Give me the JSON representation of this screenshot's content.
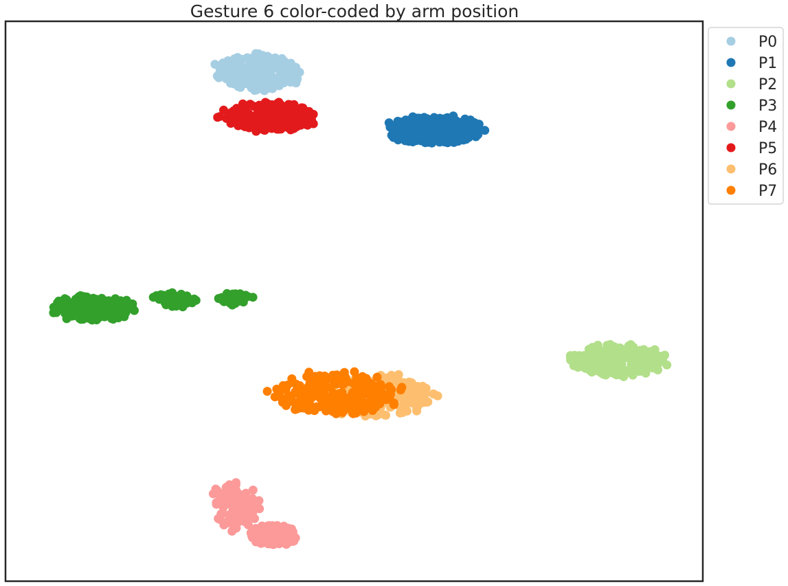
{
  "chart_data": {
    "type": "scatter",
    "title": "Gesture 6 color-coded by arm position",
    "xlabel": "",
    "ylabel": "",
    "xlim": [
      0,
      100
    ],
    "ylim": [
      0,
      100
    ],
    "grid": false,
    "legend_position": "outside-top-right",
    "series": [
      {
        "name": "P0",
        "color": "#a6cee3",
        "clusters": [
          {
            "cx": 36.2,
            "cy": 90.9,
            "rx": 6.8,
            "ry": 3.6,
            "n": 230
          }
        ]
      },
      {
        "name": "P1",
        "color": "#1f78b4",
        "clusters": [
          {
            "cx": 61.2,
            "cy": 80.7,
            "rx": 7.8,
            "ry": 2.8,
            "n": 250
          }
        ]
      },
      {
        "name": "P2",
        "color": "#b2df8a",
        "clusters": [
          {
            "cx": 87.8,
            "cy": 39.5,
            "rx": 7.6,
            "ry": 3.1,
            "n": 240
          }
        ]
      },
      {
        "name": "P3",
        "color": "#33a02c",
        "clusters": [
          {
            "cx": 12.5,
            "cy": 48.8,
            "rx": 6.3,
            "ry": 2.6,
            "n": 170
          },
          {
            "cx": 24.3,
            "cy": 50.3,
            "rx": 3.4,
            "ry": 1.6,
            "n": 45
          },
          {
            "cx": 33.0,
            "cy": 50.5,
            "rx": 2.8,
            "ry": 1.3,
            "n": 35
          }
        ]
      },
      {
        "name": "P4",
        "color": "#fb9a99",
        "clusters": [
          {
            "cx": 33.0,
            "cy": 13.5,
            "rx": 3.8,
            "ry": 4.8,
            "n": 110
          },
          {
            "cx": 38.5,
            "cy": 8.2,
            "rx": 4.2,
            "ry": 2.3,
            "n": 90
          }
        ]
      },
      {
        "name": "P5",
        "color": "#e31a1c",
        "clusters": [
          {
            "cx": 37.8,
            "cy": 82.9,
            "rx": 7.6,
            "ry": 2.9,
            "n": 230
          }
        ]
      },
      {
        "name": "P6",
        "color": "#fdbf6f",
        "clusters": [
          {
            "cx": 53.5,
            "cy": 33.0,
            "rx": 8.7,
            "ry": 4.2,
            "n": 200
          }
        ]
      },
      {
        "name": "P7",
        "color": "#ff7f00",
        "clusters": [
          {
            "cx": 47.5,
            "cy": 33.6,
            "rx": 10.0,
            "ry": 4.4,
            "n": 230
          }
        ]
      }
    ]
  }
}
